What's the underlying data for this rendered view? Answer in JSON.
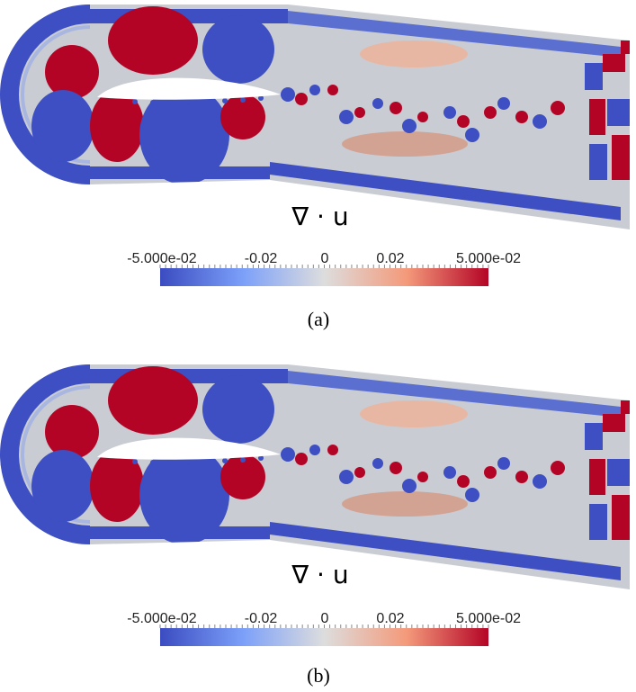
{
  "panels": [
    {
      "title": "∇ · u",
      "colorbar": {
        "labels": [
          "-5.000e-02",
          "-0.02",
          "0",
          "0.02",
          "5.000e-02"
        ]
      },
      "caption": "(a)"
    },
    {
      "title": "∇ · u",
      "colorbar": {
        "labels": [
          "-5.000e-02",
          "-0.02",
          "0",
          "0.02",
          "5.000e-02"
        ]
      },
      "caption": "(b)"
    }
  ]
}
